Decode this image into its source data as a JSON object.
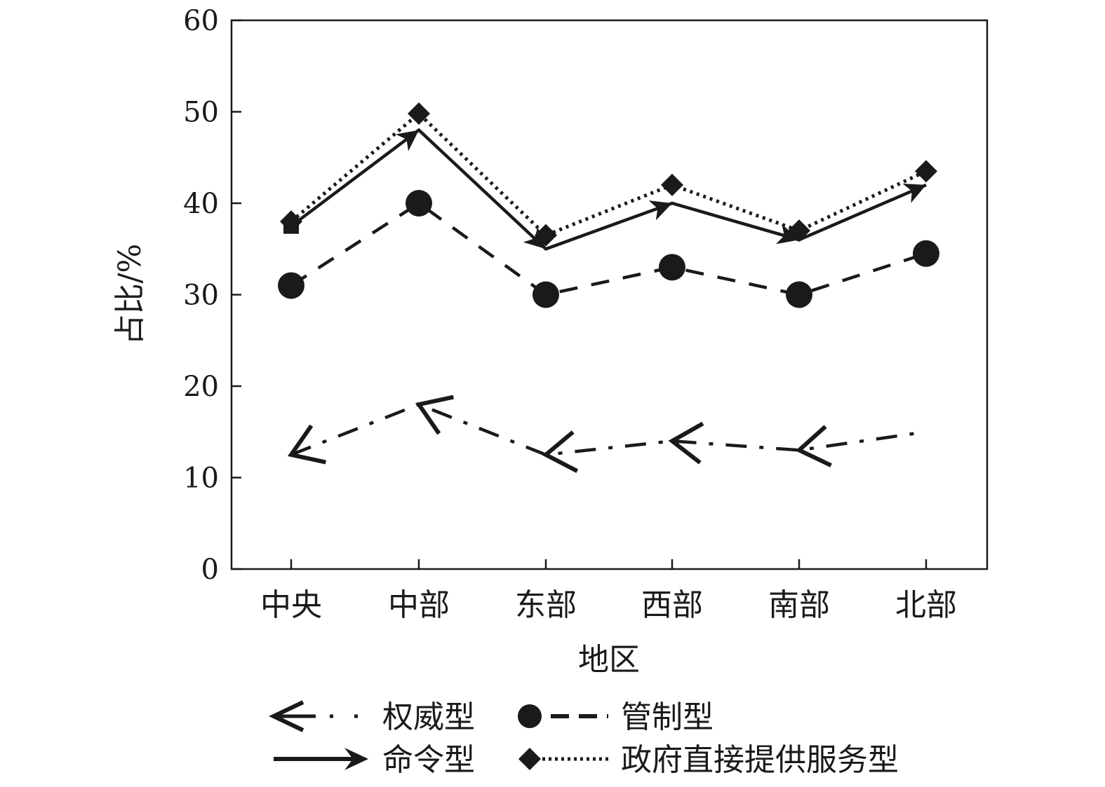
{
  "chart_data": {
    "type": "line",
    "categories": [
      "中央",
      "中部",
      "东部",
      "西部",
      "南部",
      "北部"
    ],
    "xlabel": "地区",
    "ylabel": "占比/%",
    "ylim": [
      0,
      60
    ],
    "yticks": [
      0,
      10,
      20,
      30,
      40,
      50,
      60
    ],
    "grid": false,
    "legend_position": "bottom",
    "series": [
      {
        "name": "权威型",
        "marker": "arrow-left",
        "line": "dash-dot",
        "values": [
          12.5,
          18,
          12.5,
          14,
          13,
          15
        ]
      },
      {
        "name": "管制型",
        "marker": "circle",
        "line": "dashed",
        "values": [
          31,
          40,
          30,
          33,
          30,
          34.5
        ]
      },
      {
        "name": "命令型",
        "marker": "arrow-right",
        "line": "solid",
        "values": [
          37.5,
          48,
          35,
          40,
          36,
          42
        ]
      },
      {
        "name": "政府直接提供服务型",
        "marker": "diamond",
        "line": "dotted",
        "values": [
          38,
          49.8,
          36.5,
          42,
          37,
          43.5
        ]
      }
    ],
    "colors": {
      "ink": "#1a1a1a",
      "background": "#ffffff"
    }
  }
}
